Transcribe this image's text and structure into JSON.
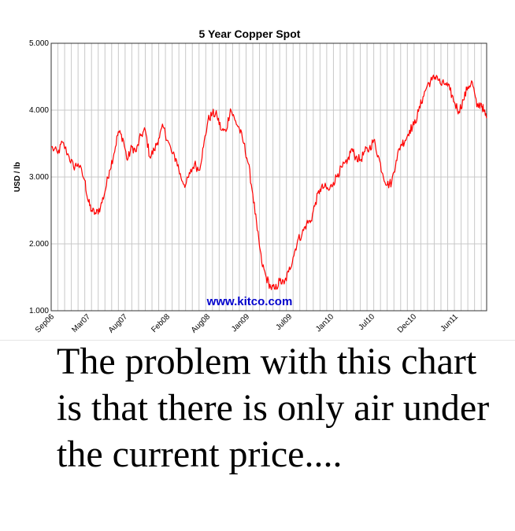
{
  "caption": "The problem with this chart is that there is only air under the current price....",
  "watermark": "www.kitco.com",
  "colors": {
    "line": "#ff0000",
    "grid": "#c8c8c8",
    "watermark": "#0000cc"
  },
  "chart_data": {
    "type": "line",
    "title": "5 Year Copper Spot",
    "xlabel": "",
    "ylabel": "USD / lb",
    "ylim": [
      1.0,
      5.0
    ],
    "y_ticks": [
      "1.000",
      "2.000",
      "3.000",
      "4.000",
      "5.000"
    ],
    "x_ticks": [
      "Sep06",
      "Mar07",
      "Aug07",
      "Feb08",
      "Aug08",
      "Jan09",
      "Jul09",
      "Jan10",
      "Jul10",
      "Dec10",
      "Jun11"
    ],
    "grid": true,
    "series": [
      {
        "values": [
          [
            0.0,
            3.45
          ],
          [
            1.5,
            3.35
          ],
          [
            2.5,
            3.52
          ],
          [
            4.0,
            3.3
          ],
          [
            5.0,
            3.15
          ],
          [
            6.0,
            3.2
          ],
          [
            7.5,
            2.95
          ],
          [
            8.2,
            2.65
          ],
          [
            9.0,
            2.5
          ],
          [
            10.0,
            2.45
          ],
          [
            11.0,
            2.55
          ],
          [
            12.0,
            2.78
          ],
          [
            13.0,
            3.1
          ],
          [
            14.0,
            3.35
          ],
          [
            15.0,
            3.68
          ],
          [
            16.0,
            3.58
          ],
          [
            17.0,
            3.25
          ],
          [
            18.0,
            3.45
          ],
          [
            19.0,
            3.38
          ],
          [
            20.0,
            3.62
          ],
          [
            21.0,
            3.7
          ],
          [
            22.0,
            3.3
          ],
          [
            23.0,
            3.4
          ],
          [
            24.0,
            3.58
          ],
          [
            25.0,
            3.75
          ],
          [
            26.0,
            3.55
          ],
          [
            27.0,
            3.35
          ],
          [
            28.0,
            3.25
          ],
          [
            29.0,
            2.98
          ],
          [
            30.0,
            2.88
          ],
          [
            31.0,
            3.05
          ],
          [
            32.0,
            3.2
          ],
          [
            33.0,
            3.1
          ],
          [
            34.0,
            3.45
          ],
          [
            35.0,
            3.85
          ],
          [
            36.0,
            3.95
          ],
          [
            37.0,
            3.92
          ],
          [
            38.0,
            3.7
          ],
          [
            39.0,
            3.68
          ],
          [
            40.0,
            4.02
          ],
          [
            41.0,
            3.85
          ],
          [
            42.0,
            3.72
          ],
          [
            43.0,
            3.5
          ],
          [
            44.0,
            3.2
          ],
          [
            45.0,
            2.75
          ],
          [
            46.0,
            2.2
          ],
          [
            47.0,
            1.72
          ],
          [
            48.0,
            1.5
          ],
          [
            49.0,
            1.35
          ],
          [
            50.0,
            1.32
          ],
          [
            51.0,
            1.45
          ],
          [
            52.0,
            1.4
          ],
          [
            53.0,
            1.58
          ],
          [
            54.0,
            1.8
          ],
          [
            55.0,
            2.05
          ],
          [
            56.0,
            2.15
          ],
          [
            57.0,
            2.3
          ],
          [
            58.0,
            2.35
          ],
          [
            59.0,
            2.62
          ],
          [
            60.0,
            2.82
          ],
          [
            61.0,
            2.85
          ],
          [
            62.0,
            2.8
          ],
          [
            63.0,
            2.92
          ],
          [
            64.0,
            3.05
          ],
          [
            65.0,
            3.15
          ],
          [
            66.0,
            3.2
          ],
          [
            67.0,
            3.42
          ],
          [
            68.0,
            3.3
          ],
          [
            69.0,
            3.25
          ],
          [
            70.0,
            3.38
          ],
          [
            71.0,
            3.42
          ],
          [
            72.0,
            3.55
          ],
          [
            73.0,
            3.32
          ],
          [
            74.0,
            3.05
          ],
          [
            75.0,
            2.88
          ],
          [
            76.0,
            2.92
          ],
          [
            77.0,
            3.25
          ],
          [
            78.0,
            3.48
          ],
          [
            79.0,
            3.55
          ],
          [
            80.0,
            3.7
          ],
          [
            81.0,
            3.78
          ],
          [
            82.0,
            3.98
          ],
          [
            83.0,
            4.2
          ],
          [
            84.0,
            4.38
          ],
          [
            85.0,
            4.45
          ],
          [
            86.0,
            4.52
          ],
          [
            87.0,
            4.38
          ],
          [
            88.0,
            4.4
          ],
          [
            89.0,
            4.3
          ],
          [
            90.0,
            4.12
          ],
          [
            91.0,
            3.98
          ],
          [
            92.0,
            4.15
          ],
          [
            93.0,
            4.35
          ],
          [
            94.0,
            4.42
          ],
          [
            95.0,
            4.05
          ],
          [
            96.0,
            4.1
          ],
          [
            96.6,
            3.98
          ],
          [
            97.2,
            3.88
          ]
        ]
      }
    ]
  }
}
